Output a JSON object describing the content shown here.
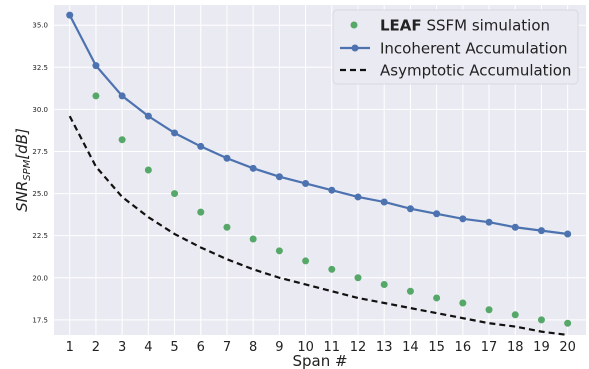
{
  "chart_data": {
    "type": "line",
    "title": "",
    "xlabel": "Span #",
    "ylabel_main": "SNR",
    "ylabel_sub": "SPM",
    "ylabel_unit": "[dB]",
    "x": [
      1,
      2,
      3,
      4,
      5,
      6,
      7,
      8,
      9,
      10,
      11,
      12,
      13,
      14,
      15,
      16,
      17,
      18,
      19,
      20
    ],
    "xlim": [
      0.4,
      20.7
    ],
    "ylim": [
      16.6,
      36.2
    ],
    "yticks": [
      17.5,
      20.0,
      22.5,
      25.0,
      27.5,
      30.0,
      32.5,
      35.0
    ],
    "ytick_labels": [
      "17.5",
      "20.0",
      "22.5",
      "25.0",
      "27.5",
      "30.0",
      "32.5",
      "35.0"
    ],
    "xtick_labels": [
      "1",
      "2",
      "3",
      "4",
      "5",
      "6",
      "7",
      "8",
      "9",
      "10",
      "11",
      "12",
      "13",
      "14",
      "15",
      "16",
      "17",
      "18",
      "19",
      "20"
    ],
    "grid": true,
    "legend_position": "top-right",
    "series": [
      {
        "name_bold": "LEAF",
        "name_rest": " SSFM simulation",
        "style": "scatter",
        "color": "#55a868",
        "values": [
          null,
          30.8,
          28.2,
          26.4,
          25.0,
          23.9,
          23.0,
          22.3,
          21.6,
          21.0,
          20.5,
          20.0,
          19.6,
          19.2,
          18.8,
          18.5,
          18.1,
          17.8,
          17.5,
          17.3
        ]
      },
      {
        "name": "Incoherent Accumulation",
        "style": "line-marker",
        "color": "#4c72b0",
        "values": [
          35.6,
          32.6,
          30.8,
          29.6,
          28.6,
          27.8,
          27.1,
          26.5,
          26.0,
          25.6,
          25.2,
          24.8,
          24.5,
          24.1,
          23.8,
          23.5,
          23.3,
          23.0,
          22.8,
          22.6
        ]
      },
      {
        "name": "Asymptotic Accumulation",
        "style": "dashed",
        "color": "#111111",
        "values": [
          29.6,
          26.6,
          24.8,
          23.6,
          22.6,
          21.8,
          21.1,
          20.5,
          20.0,
          19.6,
          19.2,
          18.8,
          18.5,
          18.2,
          17.9,
          17.6,
          17.3,
          17.1,
          16.8,
          16.6
        ]
      }
    ]
  }
}
